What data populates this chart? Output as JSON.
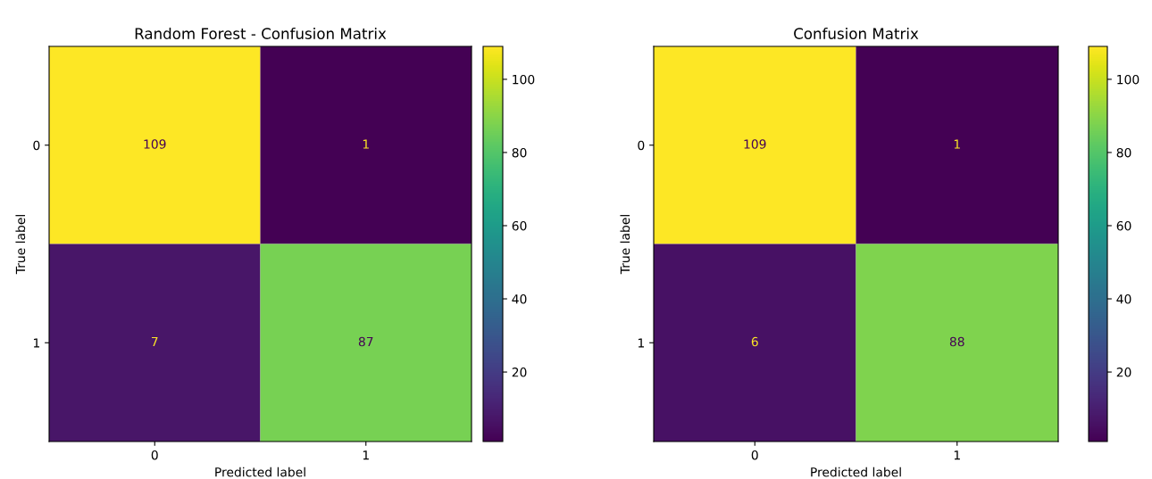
{
  "chart_data": [
    {
      "type": "heatmap",
      "title": "Random Forest - Confusion Matrix",
      "xlabel": "Predicted label",
      "ylabel": "True label",
      "categories": [
        "0",
        "1"
      ],
      "y_categories": [
        "0",
        "1"
      ],
      "cells": [
        [
          109,
          1
        ],
        [
          7,
          87
        ]
      ],
      "clim": [
        1,
        109
      ],
      "cticks": [
        20,
        40,
        60,
        80,
        100
      ],
      "data_labels": true
    },
    {
      "type": "heatmap",
      "title": "Confusion Matrix",
      "xlabel": "Predicted label",
      "ylabel": "True label",
      "categories": [
        "0",
        "1"
      ],
      "y_categories": [
        "0",
        "1"
      ],
      "cells": [
        [
          109,
          1
        ],
        [
          6,
          88
        ]
      ],
      "clim": [
        1,
        109
      ],
      "cticks": [
        20,
        40,
        60,
        80,
        100
      ],
      "data_labels": true
    }
  ]
}
